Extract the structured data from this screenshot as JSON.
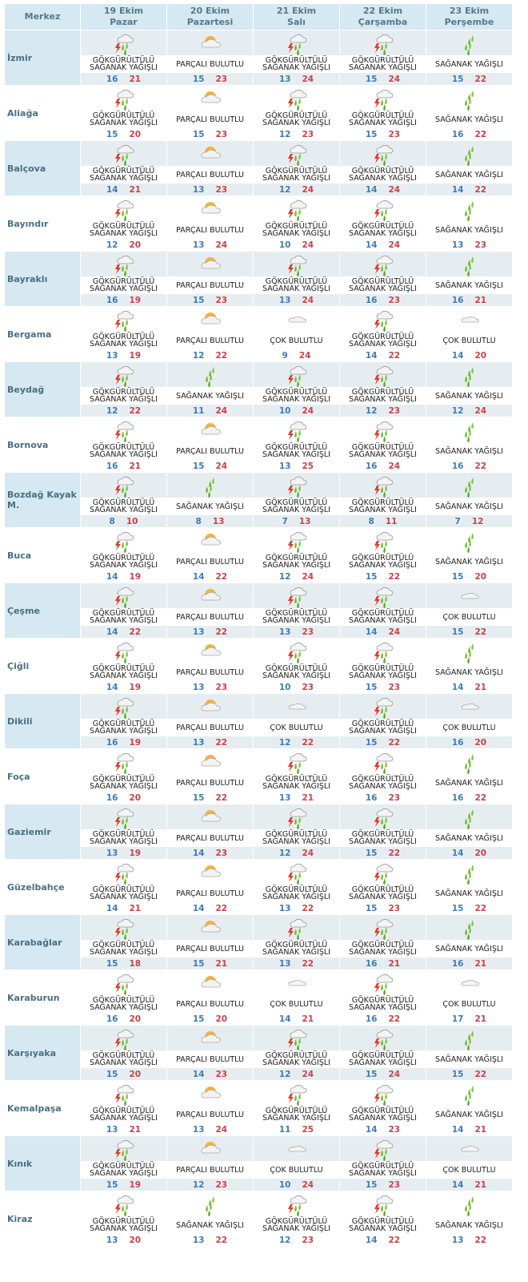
{
  "header": {
    "merkez": "Merkez",
    "days": [
      {
        "date": "19 Ekim",
        "day": "Pazar"
      },
      {
        "date": "20 Ekim",
        "day": "Pazartesi"
      },
      {
        "date": "21 Ekim",
        "day": "Salı"
      },
      {
        "date": "22 Ekim",
        "day": "Çarşamba"
      },
      {
        "date": "23 Ekim",
        "day": "Perşembe"
      }
    ]
  },
  "conditions": {
    "T": {
      "label": "GÖKGÜRÜLTÜLÜ SAĞANAK YAĞIŞLI",
      "icon": "thunder-shower-icon"
    },
    "P": {
      "label": "PARÇALI BULUTLU",
      "icon": "partly-cloudy-icon"
    },
    "S": {
      "label": "SAĞANAK YAĞIŞLI",
      "icon": "shower-icon"
    },
    "C": {
      "label": "ÇOK BULUTLU",
      "icon": "cloudy-icon"
    }
  },
  "colors": {
    "low": "#3f7bb5",
    "high": "#c8434b",
    "header_bg": "#d6e8f1"
  },
  "rows": [
    [
      "İzmir",
      [
        [
          "T",
          16,
          21
        ],
        [
          "P",
          15,
          23
        ],
        [
          "T",
          13,
          24
        ],
        [
          "T",
          15,
          24
        ],
        [
          "S",
          15,
          22
        ]
      ]
    ],
    [
      "Aliağa",
      [
        [
          "T",
          15,
          20
        ],
        [
          "P",
          15,
          23
        ],
        [
          "T",
          12,
          23
        ],
        [
          "T",
          15,
          23
        ],
        [
          "S",
          16,
          22
        ]
      ]
    ],
    [
      "Balçova",
      [
        [
          "T",
          14,
          21
        ],
        [
          "P",
          13,
          23
        ],
        [
          "T",
          12,
          24
        ],
        [
          "T",
          14,
          24
        ],
        [
          "S",
          14,
          22
        ]
      ]
    ],
    [
      "Bayındır",
      [
        [
          "T",
          12,
          20
        ],
        [
          "P",
          13,
          24
        ],
        [
          "T",
          10,
          24
        ],
        [
          "T",
          14,
          24
        ],
        [
          "S",
          13,
          23
        ]
      ]
    ],
    [
      "Bayraklı",
      [
        [
          "T",
          16,
          19
        ],
        [
          "P",
          15,
          23
        ],
        [
          "T",
          13,
          24
        ],
        [
          "T",
          16,
          23
        ],
        [
          "S",
          16,
          21
        ]
      ]
    ],
    [
      "Bergama",
      [
        [
          "T",
          13,
          19
        ],
        [
          "P",
          12,
          22
        ],
        [
          "C",
          9,
          24
        ],
        [
          "T",
          14,
          22
        ],
        [
          "C",
          14,
          20
        ]
      ]
    ],
    [
      "Beydağ",
      [
        [
          "T",
          12,
          22
        ],
        [
          "S",
          11,
          24
        ],
        [
          "T",
          10,
          24
        ],
        [
          "T",
          12,
          23
        ],
        [
          "S",
          12,
          24
        ]
      ]
    ],
    [
      "Bornova",
      [
        [
          "T",
          16,
          21
        ],
        [
          "P",
          15,
          24
        ],
        [
          "T",
          13,
          25
        ],
        [
          "T",
          16,
          24
        ],
        [
          "S",
          16,
          22
        ]
      ]
    ],
    [
      "Bozdağ Kayak M.",
      [
        [
          "T",
          8,
          10
        ],
        [
          "S",
          8,
          13
        ],
        [
          "T",
          7,
          13
        ],
        [
          "T",
          8,
          11
        ],
        [
          "S",
          7,
          12
        ]
      ]
    ],
    [
      "Buca",
      [
        [
          "T",
          14,
          19
        ],
        [
          "P",
          14,
          22
        ],
        [
          "T",
          12,
          24
        ],
        [
          "T",
          15,
          22
        ],
        [
          "S",
          15,
          20
        ]
      ]
    ],
    [
      "Çeşme",
      [
        [
          "T",
          14,
          22
        ],
        [
          "P",
          13,
          22
        ],
        [
          "T",
          13,
          23
        ],
        [
          "T",
          14,
          24
        ],
        [
          "C",
          15,
          22
        ]
      ]
    ],
    [
      "Çiğli",
      [
        [
          "T",
          14,
          19
        ],
        [
          "P",
          13,
          23
        ],
        [
          "T",
          10,
          23
        ],
        [
          "T",
          15,
          23
        ],
        [
          "S",
          14,
          21
        ]
      ]
    ],
    [
      "Dikili",
      [
        [
          "T",
          16,
          19
        ],
        [
          "P",
          13,
          22
        ],
        [
          "C",
          12,
          22
        ],
        [
          "T",
          15,
          22
        ],
        [
          "C",
          16,
          20
        ]
      ]
    ],
    [
      "Foça",
      [
        [
          "T",
          16,
          20
        ],
        [
          "P",
          15,
          22
        ],
        [
          "T",
          13,
          21
        ],
        [
          "T",
          16,
          23
        ],
        [
          "S",
          16,
          22
        ]
      ]
    ],
    [
      "Gaziemir",
      [
        [
          "T",
          13,
          19
        ],
        [
          "P",
          14,
          23
        ],
        [
          "T",
          12,
          24
        ],
        [
          "T",
          15,
          22
        ],
        [
          "S",
          14,
          20
        ]
      ]
    ],
    [
      "Güzelbahçe",
      [
        [
          "T",
          14,
          21
        ],
        [
          "P",
          14,
          22
        ],
        [
          "T",
          13,
          22
        ],
        [
          "T",
          15,
          23
        ],
        [
          "S",
          15,
          22
        ]
      ]
    ],
    [
      "Karabağlar",
      [
        [
          "T",
          15,
          18
        ],
        [
          "P",
          15,
          21
        ],
        [
          "T",
          13,
          22
        ],
        [
          "T",
          16,
          21
        ],
        [
          "S",
          16,
          21
        ]
      ]
    ],
    [
      "Karaburun",
      [
        [
          "T",
          16,
          20
        ],
        [
          "P",
          15,
          20
        ],
        [
          "C",
          14,
          21
        ],
        [
          "T",
          16,
          22
        ],
        [
          "C",
          17,
          21
        ]
      ]
    ],
    [
      "Karşıyaka",
      [
        [
          "T",
          15,
          20
        ],
        [
          "P",
          14,
          23
        ],
        [
          "T",
          12,
          24
        ],
        [
          "T",
          15,
          24
        ],
        [
          "S",
          15,
          22
        ]
      ]
    ],
    [
      "Kemalpaşa",
      [
        [
          "T",
          13,
          21
        ],
        [
          "P",
          13,
          24
        ],
        [
          "T",
          11,
          25
        ],
        [
          "T",
          14,
          23
        ],
        [
          "S",
          14,
          21
        ]
      ]
    ],
    [
      "Kınık",
      [
        [
          "T",
          15,
          19
        ],
        [
          "P",
          12,
          23
        ],
        [
          "C",
          10,
          24
        ],
        [
          "T",
          15,
          23
        ],
        [
          "C",
          14,
          21
        ]
      ]
    ],
    [
      "Kiraz",
      [
        [
          "T",
          13,
          20
        ],
        [
          "S",
          13,
          22
        ],
        [
          "T",
          12,
          23
        ],
        [
          "T",
          14,
          22
        ],
        [
          "S",
          13,
          22
        ]
      ]
    ]
  ]
}
